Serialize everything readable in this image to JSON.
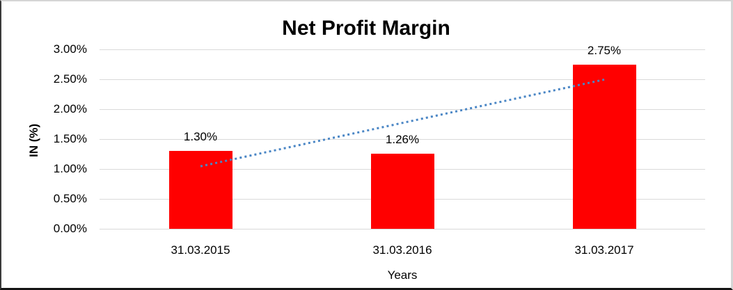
{
  "chart_data": {
    "type": "bar",
    "title": "Net Profit Margin",
    "xlabel": "Years",
    "ylabel": "IN (%)",
    "categories": [
      "31.03.2015",
      "31.03.2016",
      "31.03.2017"
    ],
    "values": [
      1.3,
      1.26,
      2.75
    ],
    "data_labels": [
      "1.30%",
      "1.26%",
      "2.75%"
    ],
    "ylim": [
      0,
      3
    ],
    "yticks": [
      0,
      0.5,
      1,
      1.5,
      2,
      2.5,
      3
    ],
    "ytick_labels": [
      "0.00%",
      "0.50%",
      "1.00%",
      "1.50%",
      "2.00%",
      "2.50%",
      "3.00%"
    ],
    "grid": true,
    "legend": false,
    "bar_color": "#FF0000",
    "gridline_color": "#D9D9D9",
    "trendline": {
      "type": "linear",
      "line_style": "dotted",
      "color": "#4A86C5"
    }
  }
}
